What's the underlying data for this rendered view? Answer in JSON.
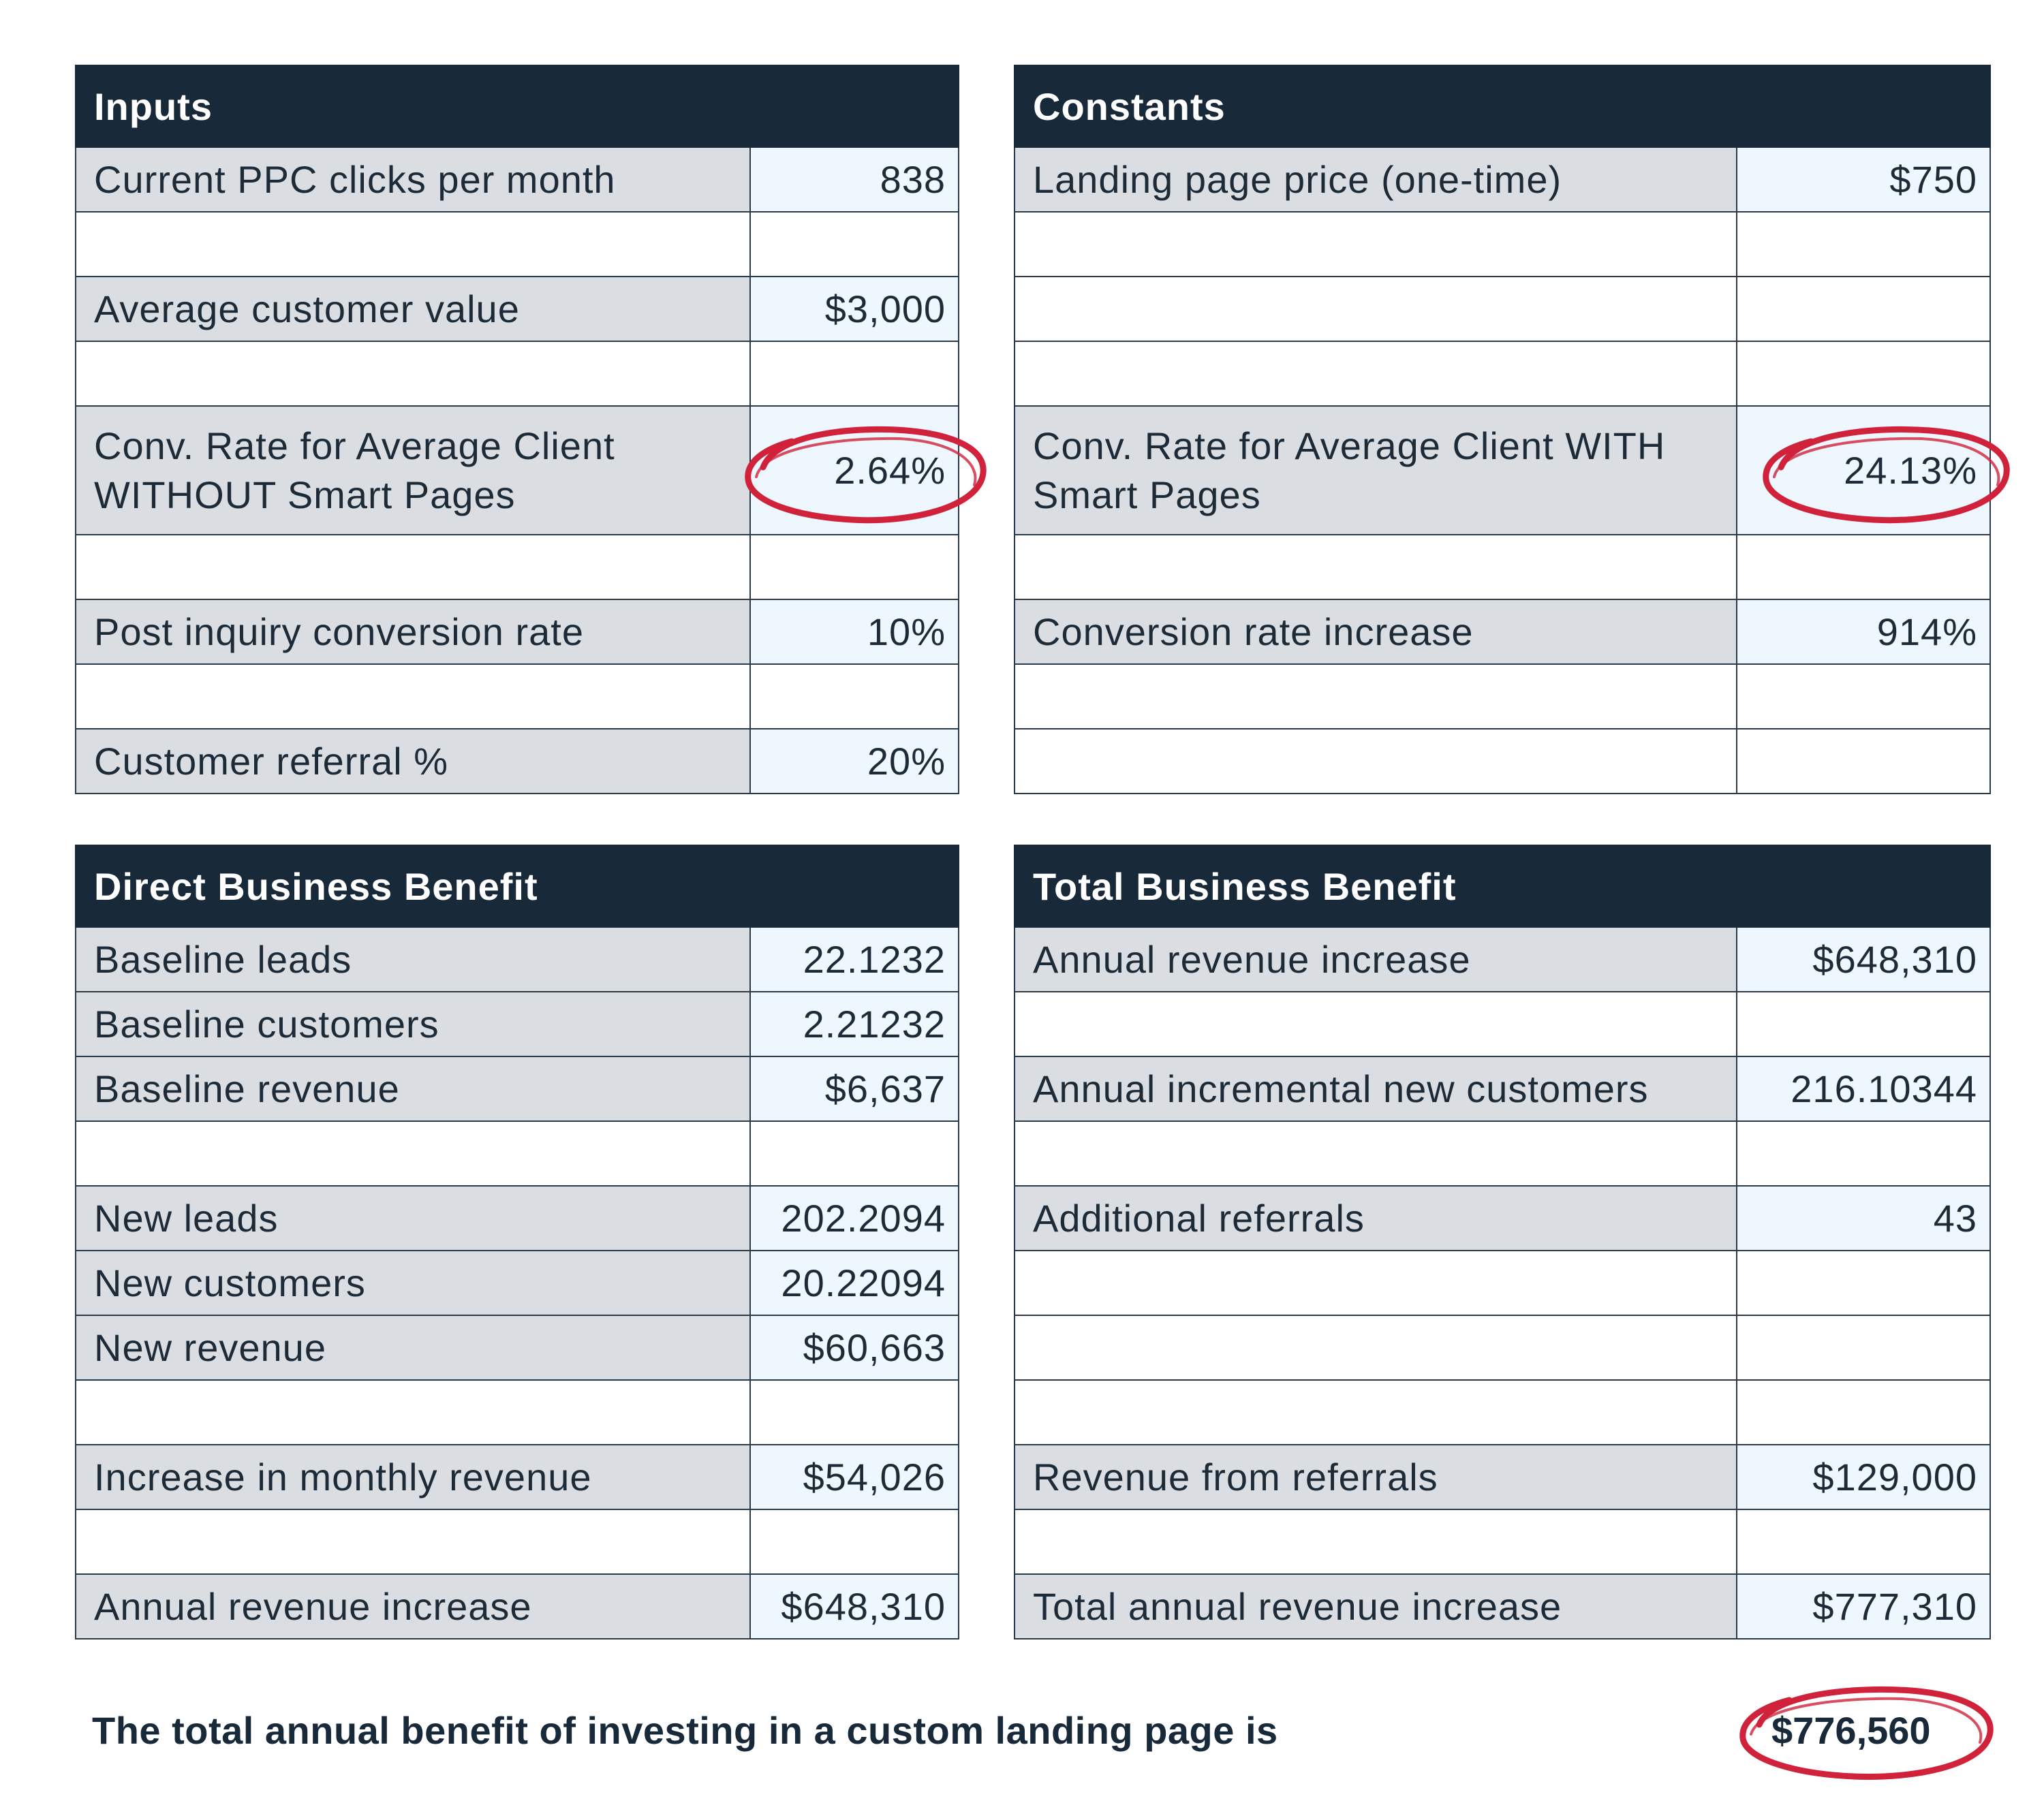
{
  "inputs": {
    "title": "Inputs",
    "rows": [
      {
        "label": "Current PPC clicks per month",
        "value": "838"
      },
      {
        "label": "",
        "value": ""
      },
      {
        "label": "Average customer value",
        "value": "$3,000"
      },
      {
        "label": "",
        "value": ""
      },
      {
        "label": "Conv. Rate for Average Client WITHOUT Smart Pages",
        "value": "2.64%"
      },
      {
        "label": "",
        "value": ""
      },
      {
        "label": "Post inquiry conversion rate",
        "value": "10%"
      },
      {
        "label": "",
        "value": ""
      },
      {
        "label": "Customer referral %",
        "value": "20%"
      }
    ]
  },
  "constants": {
    "title": "Constants",
    "rows": [
      {
        "label": "Landing page price (one-time)",
        "value": "$750"
      },
      {
        "label": "",
        "value": ""
      },
      {
        "label": "",
        "value": ""
      },
      {
        "label": "",
        "value": ""
      },
      {
        "label": "Conv. Rate for Average Client WITH Smart Pages",
        "value": "24.13%"
      },
      {
        "label": "",
        "value": ""
      },
      {
        "label": "Conversion rate increase",
        "value": "914%"
      },
      {
        "label": "",
        "value": ""
      },
      {
        "label": "",
        "value": ""
      }
    ]
  },
  "direct": {
    "title": "Direct Business Benefit",
    "rows": [
      {
        "label": "Baseline leads",
        "value": "22.1232"
      },
      {
        "label": "Baseline customers",
        "value": "2.21232"
      },
      {
        "label": "Baseline revenue",
        "value": "$6,637"
      },
      {
        "label": "",
        "value": ""
      },
      {
        "label": "New leads",
        "value": "202.2094"
      },
      {
        "label": "New customers",
        "value": "20.22094"
      },
      {
        "label": "New revenue",
        "value": "$60,663"
      },
      {
        "label": "",
        "value": ""
      },
      {
        "label": "Increase in monthly revenue",
        "value": "$54,026"
      },
      {
        "label": "",
        "value": ""
      },
      {
        "label": "Annual revenue increase",
        "value": "$648,310"
      }
    ]
  },
  "total": {
    "title": "Total Business Benefit",
    "rows": [
      {
        "label": "Annual revenue increase",
        "value": "$648,310"
      },
      {
        "label": "",
        "value": ""
      },
      {
        "label": "Annual incremental new customers",
        "value": "216.10344"
      },
      {
        "label": "",
        "value": ""
      },
      {
        "label": "Additional referrals",
        "value": "43"
      },
      {
        "label": "",
        "value": ""
      },
      {
        "label": "",
        "value": ""
      },
      {
        "label": "",
        "value": ""
      },
      {
        "label": "Revenue from referrals",
        "value": "$129,000"
      },
      {
        "label": "",
        "value": ""
      },
      {
        "label": "Total annual revenue increase",
        "value": "$777,310"
      }
    ]
  },
  "footer": {
    "text": "The total annual benefit of investing in a custom landing page is",
    "total": "$776,560"
  },
  "colors": {
    "header_bg": "#182a3a",
    "label_fill": "#dadee2",
    "value_fill": "#eef7fd",
    "highlight_circle": "#d0223a"
  }
}
